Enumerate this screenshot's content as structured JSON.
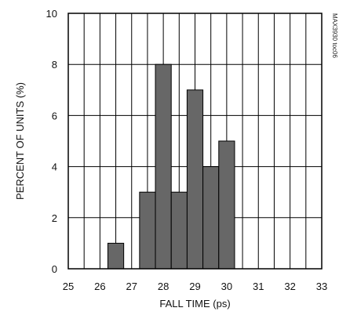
{
  "chart_data": {
    "type": "bar",
    "title": "",
    "xlabel": "FALL TIME (ps)",
    "ylabel": "PERCENT OF UNITS (%)",
    "xlim": [
      25,
      33
    ],
    "ylim": [
      0,
      10
    ],
    "x_ticks": [
      "25",
      "26",
      "27",
      "28",
      "29",
      "30",
      "31",
      "32",
      "33"
    ],
    "y_ticks": [
      "0",
      "2",
      "4",
      "6",
      "8",
      "10"
    ],
    "bin_width": 0.5,
    "bins": [
      {
        "x_start": 26.25,
        "value": 1
      },
      {
        "x_start": 27.25,
        "value": 3
      },
      {
        "x_start": 27.75,
        "value": 8
      },
      {
        "x_start": 28.25,
        "value": 3
      },
      {
        "x_start": 28.75,
        "value": 7
      },
      {
        "x_start": 29.25,
        "value": 4
      },
      {
        "x_start": 29.75,
        "value": 5
      }
    ],
    "grid": true,
    "bar_color": "#676767",
    "grid_color": "#000000",
    "annotation": "MAX3930 toc06"
  }
}
